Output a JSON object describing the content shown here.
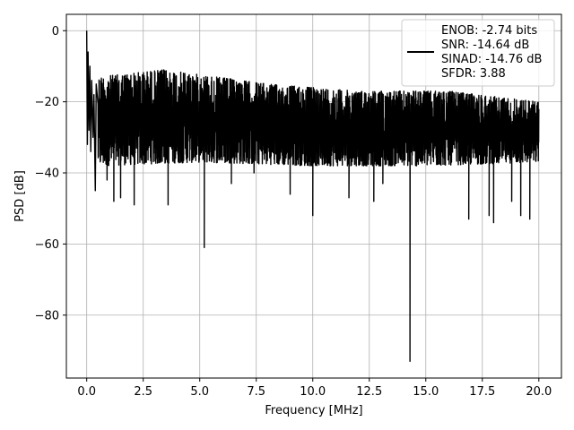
{
  "chart_data": {
    "type": "line",
    "xlabel": "Frequency [MHz]",
    "ylabel": "PSD [dB]",
    "xlim": [
      -0.9,
      21.0
    ],
    "ylim": [
      -97.7,
      4.6
    ],
    "x_ticks": [
      0.0,
      2.5,
      5.0,
      7.5,
      10.0,
      12.5,
      15.0,
      17.5,
      20.0
    ],
    "x_tick_labels": [
      "0.0",
      "2.5",
      "5.0",
      "7.5",
      "10.0",
      "12.5",
      "15.0",
      "17.5",
      "20.0"
    ],
    "y_ticks": [
      0,
      -20,
      -40,
      -60,
      -80
    ],
    "y_tick_labels": [
      "0",
      "−20",
      "−40",
      "−60",
      "−80"
    ],
    "grid": true,
    "legend_position": "top-right",
    "series": [
      {
        "name": "ENOB: -2.74 bits\nSNR: -14.64 dB\nSINAD: -14.76 dB\nSFDR: 3.88",
        "color": "#000000",
        "x_start": 0.0,
        "x_end": 20.0,
        "points": [
          [
            0.0,
            0
          ],
          [
            0.03,
            -32
          ],
          [
            0.06,
            -6
          ],
          [
            0.1,
            -28
          ],
          [
            0.14,
            -10
          ],
          [
            0.18,
            -34
          ],
          [
            0.22,
            -14
          ],
          [
            0.28,
            -30
          ],
          [
            0.32,
            -18
          ],
          [
            0.38,
            -45
          ],
          [
            0.42,
            -15
          ],
          [
            5.2,
            -61
          ],
          [
            14.3,
            -93
          ]
        ],
        "upper_envelope_dB": [
          [
            0.5,
            -13
          ],
          [
            3.4,
            -11
          ],
          [
            8,
            -15
          ],
          [
            12,
            -17
          ],
          [
            16,
            -17
          ],
          [
            20,
            -20
          ]
        ],
        "lower_envelope_dB": [
          [
            0.5,
            -38
          ],
          [
            5,
            -37
          ],
          [
            10,
            -38
          ],
          [
            15,
            -38
          ],
          [
            20,
            -37
          ]
        ],
        "dips": [
          [
            0.9,
            -42
          ],
          [
            1.2,
            -48
          ],
          [
            1.5,
            -47
          ],
          [
            2.1,
            -49
          ],
          [
            3.6,
            -49
          ],
          [
            6.4,
            -43
          ],
          [
            7.4,
            -40
          ],
          [
            9.0,
            -46
          ],
          [
            10.0,
            -52
          ],
          [
            11.6,
            -47
          ],
          [
            12.7,
            -48
          ],
          [
            13.1,
            -43
          ],
          [
            16.9,
            -53
          ],
          [
            17.8,
            -52
          ],
          [
            18.0,
            -54
          ],
          [
            18.8,
            -48
          ],
          [
            19.2,
            -52
          ],
          [
            19.6,
            -53
          ]
        ]
      }
    ]
  }
}
